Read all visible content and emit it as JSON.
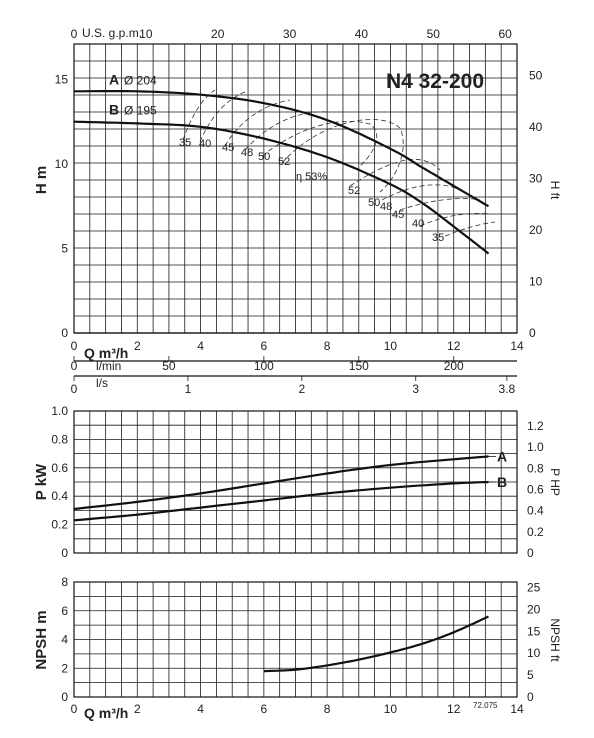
{
  "chart_data": [
    {
      "panel": "head",
      "type": "line",
      "title": "N4 32-200",
      "ylabel": "H m",
      "ylabel_right": "H ft",
      "xlabel_top": "U.S. g.p.m.",
      "xlim": [
        0,
        14
      ],
      "ylim": [
        0,
        16
      ],
      "yticks": [
        "0",
        "5",
        "10",
        "15"
      ],
      "ytick_values": [
        0,
        5,
        10,
        15
      ],
      "yticks_right": [
        "0",
        "10",
        "20",
        "30",
        "40",
        "50"
      ],
      "yticks_right_values": [
        0,
        10,
        20,
        30,
        40,
        50
      ],
      "xticks_top": [
        "0",
        "10",
        "20",
        "30",
        "40",
        "50",
        "60"
      ],
      "xticks_top_values": [
        0,
        10,
        20,
        30,
        40,
        50,
        60
      ],
      "series": [
        {
          "name": "A",
          "diameter_label": "Ø 204",
          "x": [
            0,
            2,
            4,
            6,
            8,
            10,
            11,
            12,
            13.1
          ],
          "y": [
            14.3,
            14.3,
            14.1,
            13.6,
            12.6,
            10.9,
            9.8,
            8.7,
            7.5
          ]
        },
        {
          "name": "B",
          "diameter_label": "Ø 195",
          "x": [
            0,
            2,
            4,
            6,
            8,
            10,
            11,
            12,
            13.1
          ],
          "y": [
            12.5,
            12.4,
            12.2,
            11.5,
            10.4,
            8.8,
            7.7,
            6.3,
            4.7
          ]
        }
      ],
      "efficiency_label": "η 53%",
      "efficiency_values": [
        "35",
        "40",
        "45",
        "48",
        "50",
        "52",
        "52",
        "50",
        "48",
        "45",
        "40",
        "35"
      ]
    },
    {
      "panel": "power",
      "type": "line",
      "ylabel": "P kW",
      "ylabel_right": "P HP",
      "xlim": [
        0,
        14
      ],
      "ylim": [
        0,
        1.0
      ],
      "yticks": [
        "0",
        "0.2",
        "0.4",
        "0.6",
        "0.8",
        "1.0"
      ],
      "ytick_values": [
        0,
        0.2,
        0.4,
        0.6,
        0.8,
        1.0
      ],
      "yticks_right": [
        "0",
        "0.2",
        "0.4",
        "0.6",
        "0.8",
        "1.0",
        "1.2"
      ],
      "yticks_right_values": [
        0,
        0.2,
        0.4,
        0.6,
        0.8,
        1.0,
        1.2
      ],
      "series": [
        {
          "name": "A",
          "x": [
            0,
            2,
            4,
            6,
            8,
            10,
            12,
            13.1
          ],
          "y": [
            0.31,
            0.36,
            0.42,
            0.49,
            0.56,
            0.62,
            0.66,
            0.68
          ]
        },
        {
          "name": "B",
          "x": [
            0,
            2,
            4,
            6,
            8,
            10,
            12,
            13.1
          ],
          "y": [
            0.23,
            0.27,
            0.32,
            0.37,
            0.42,
            0.46,
            0.49,
            0.5
          ]
        }
      ]
    },
    {
      "panel": "npsh",
      "type": "line",
      "ylabel": "NPSH m",
      "ylabel_right": "NPSH ft",
      "xlabel": "Q m³/h",
      "xlim": [
        0,
        14
      ],
      "ylim": [
        0,
        8
      ],
      "yticks": [
        "0",
        "2",
        "4",
        "6",
        "8"
      ],
      "ytick_values": [
        0,
        2,
        4,
        6,
        8
      ],
      "yticks_right": [
        "0",
        "5",
        "10",
        "15",
        "20",
        "25"
      ],
      "yticks_right_values": [
        0,
        5,
        10,
        15,
        20,
        25
      ],
      "xticks": [
        "0",
        "2",
        "4",
        "6",
        "8",
        "10",
        "12",
        "14"
      ],
      "xtick_values": [
        0,
        2,
        4,
        6,
        8,
        10,
        12,
        14
      ],
      "series": [
        {
          "name": "NPSH",
          "x": [
            6,
            7,
            8,
            9,
            10,
            11,
            12,
            13.1
          ],
          "y": [
            1.8,
            1.9,
            2.2,
            2.6,
            3.1,
            3.7,
            4.5,
            5.6
          ]
        }
      ],
      "code": "72.075"
    }
  ],
  "axes_strip": {
    "q_label": "Q m³/h",
    "q_ticks": [
      "0",
      "2",
      "4",
      "6",
      "8",
      "10",
      "12",
      "14"
    ],
    "q_tick_values": [
      0,
      2,
      4,
      6,
      8,
      10,
      12,
      14
    ],
    "lmin_label": "l/min",
    "lmin_ticks": [
      "0",
      "50",
      "100",
      "150",
      "200"
    ],
    "lmin_tick_values": [
      0,
      50,
      100,
      150,
      200
    ],
    "ls_label": "l/s",
    "ls_ticks": [
      "0",
      "1",
      "2",
      "3",
      "3.8"
    ],
    "ls_tick_values": [
      0,
      1,
      2,
      3,
      3.8
    ]
  },
  "colors": {
    "ink": "#111111",
    "grid": "#1a1a1a",
    "background": "#ffffff"
  }
}
